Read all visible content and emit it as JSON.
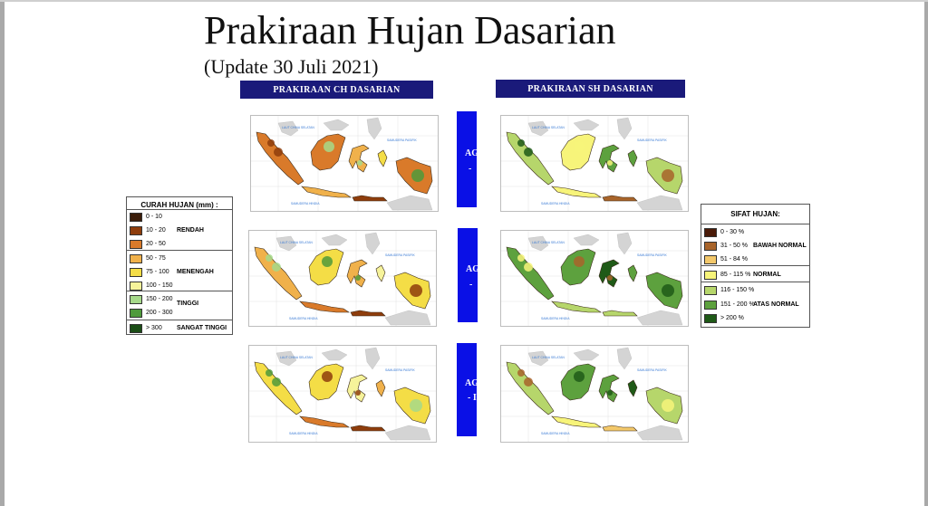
{
  "header": {
    "title": "Prakiraan Hujan Dasarian",
    "subtitle": "(Update 30 Juli 2021)"
  },
  "columns": {
    "ch_label": "PRAKIRAAN CH DASARIAN",
    "sh_label": "PRAKIRAAN SH DASARIAN"
  },
  "dekad_tabs": [
    {
      "visible_text": "AG\n-"
    },
    {
      "visible_text": "AG\n-"
    },
    {
      "visible_text": "AG\n- I"
    }
  ],
  "map_labels": {
    "sea_north": "LAUT CHINA SELATAN",
    "sea_east": "SAMUDERA PASIFIK",
    "sea_south": "SAMUDERA HINDIA"
  },
  "legend_ch": {
    "title": "CURAH HUJAN (mm) :",
    "items": [
      {
        "range": "0 - 10",
        "color": "#3b1d0a"
      },
      {
        "range": "10 - 20",
        "color": "#8e3d0c"
      },
      {
        "range": "20 - 50",
        "color": "#d97a2a"
      },
      {
        "range": "50 - 75",
        "color": "#f0b14b"
      },
      {
        "range": "75 - 100",
        "color": "#f4dd46"
      },
      {
        "range": "100 - 150",
        "color": "#f6f39a"
      },
      {
        "range": "150 - 200",
        "color": "#a6d98a"
      },
      {
        "range": "200 - 300",
        "color": "#4f9a3b"
      },
      {
        "range": "> 300",
        "color": "#1b4d16"
      }
    ],
    "categories": [
      "RENDAH",
      "MENENGAH",
      "TINGGI",
      "SANGAT TINGGI"
    ]
  },
  "legend_sh": {
    "title": "SIFAT HUJAN:",
    "items": [
      {
        "range": "0 - 30 %",
        "color": "#4a1a08"
      },
      {
        "range": "31 - 50 %",
        "color": "#a8642a"
      },
      {
        "range": "51 - 84 %",
        "color": "#f3c86a"
      },
      {
        "range": "85 - 115 %",
        "color": "#f7f47a"
      },
      {
        "range": "116 - 150 %",
        "color": "#b6d66b"
      },
      {
        "range": "151 - 200 %",
        "color": "#5da13e"
      },
      {
        "range": "> 200 %",
        "color": "#1f5a17"
      }
    ],
    "categories": [
      "BAWAH NORMAL",
      "NORMAL",
      "ATAS NORMAL"
    ]
  },
  "colors": {
    "header_bar": "#1a1a7a",
    "dekad_tab": "#0a10e6",
    "sea": "#ffffff",
    "neighbor_land": "#d4d4d4"
  },
  "map_panels": [
    {
      "id": "ch-1",
      "palette": "ch",
      "scheme": 0
    },
    {
      "id": "sh-1",
      "palette": "sh",
      "scheme": 0
    },
    {
      "id": "ch-2",
      "palette": "ch",
      "scheme": 1
    },
    {
      "id": "sh-2",
      "palette": "sh",
      "scheme": 1
    },
    {
      "id": "ch-3",
      "palette": "ch",
      "scheme": 2
    },
    {
      "id": "sh-3",
      "palette": "sh",
      "scheme": 2
    }
  ]
}
